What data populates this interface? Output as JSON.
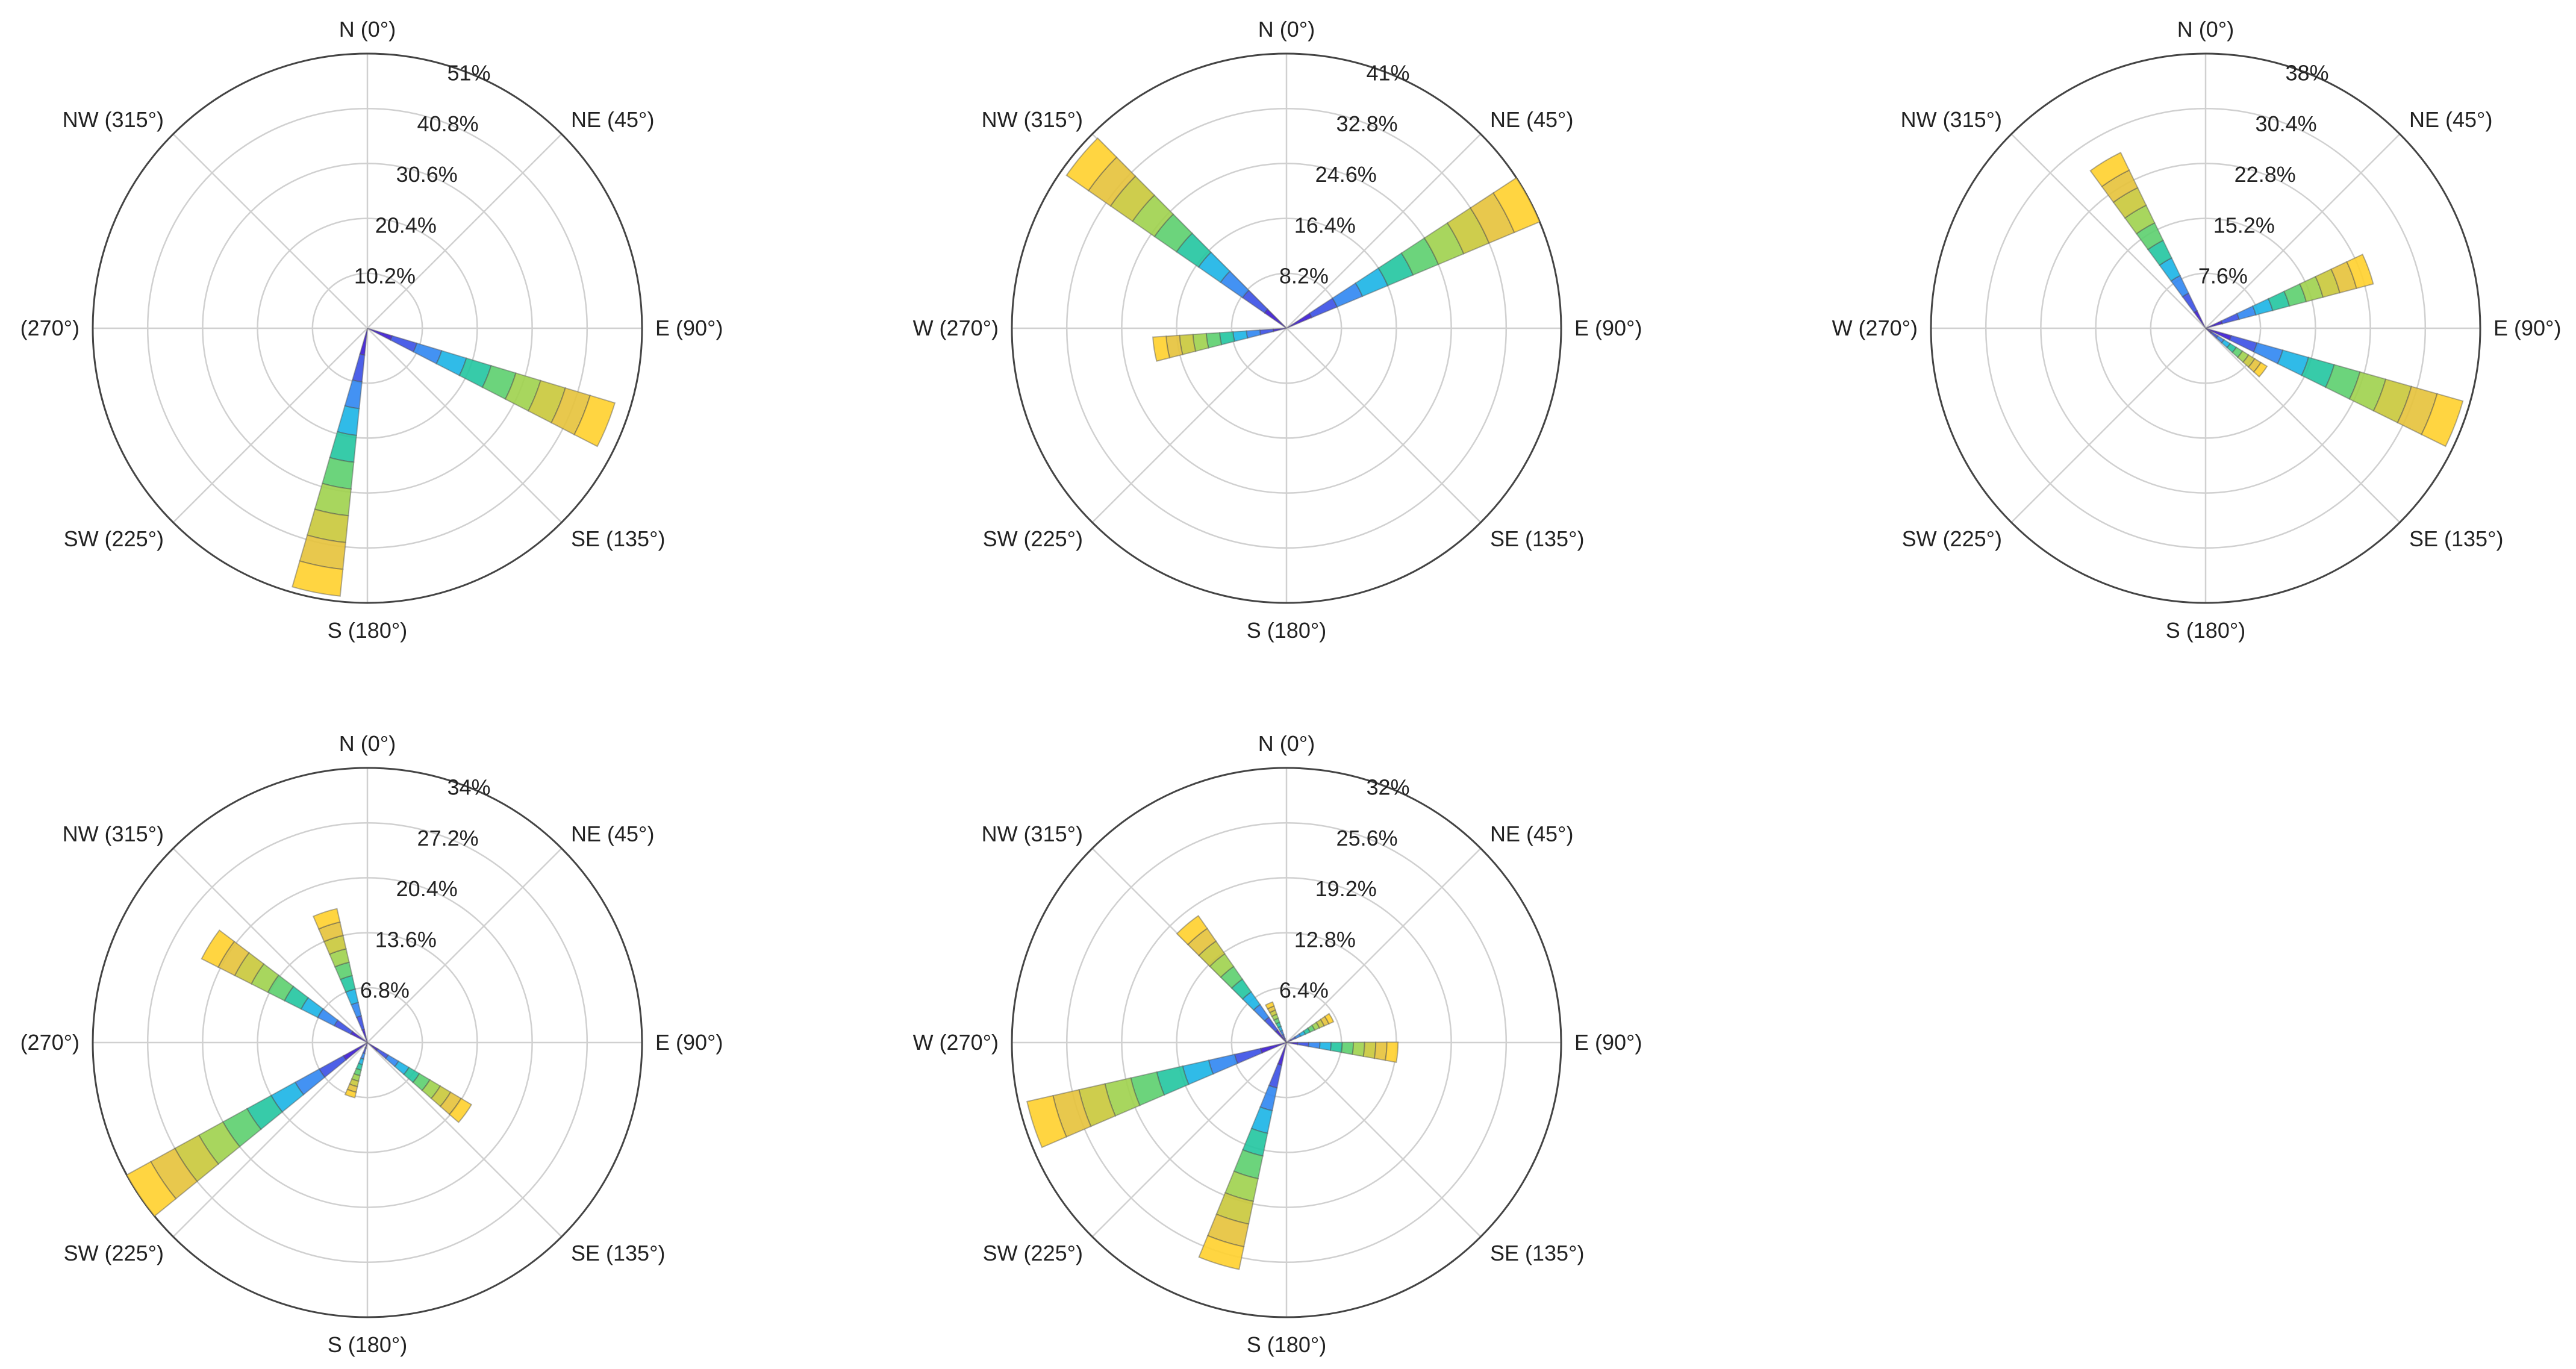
{
  "palette": [
    "#3b18d6",
    "#3a4fe6",
    "#2f86f2",
    "#19b4e6",
    "#21c5a0",
    "#5ccf6e",
    "#9fd14c",
    "#c9c83a",
    "#e6c23a",
    "#ffd02c"
  ],
  "edge_color": "#555555",
  "chart_data": [
    {
      "type": "windrose",
      "title": "",
      "direction_labels": [
        "N (0°)",
        "NE (45°)",
        "E (90°)",
        "SE (135°)",
        "S (180°)",
        "SW (225°)",
        "(270°)",
        "NW (315°)"
      ],
      "rmax": 51,
      "ring_labels": [
        "10.2%",
        "20.4%",
        "30.6%",
        "40.8%",
        "51%"
      ],
      "bars": [
        {
          "direction": 112,
          "value": 48
        },
        {
          "direction": 191,
          "value": 50
        }
      ]
    },
    {
      "type": "windrose",
      "title": "",
      "direction_labels": [
        "N (0°)",
        "NE (45°)",
        "E (90°)",
        "SE (135°)",
        "S (180°)",
        "SW (225°)",
        "W (270°)",
        "NW (315°)"
      ],
      "rmax": 41,
      "ring_labels": [
        "8.2%",
        "16.4%",
        "24.6%",
        "32.8%",
        "41%"
      ],
      "bars": [
        {
          "direction": 62,
          "value": 41
        },
        {
          "direction": 310,
          "value": 40
        },
        {
          "direction": 261,
          "value": 20
        }
      ]
    },
    {
      "type": "windrose",
      "title": "",
      "direction_labels": [
        "N (0°)",
        "NE (45°)",
        "E (90°)",
        "SE (135°)",
        "S (180°)",
        "SW (225°)",
        "W (270°)",
        "NW (315°)"
      ],
      "rmax": 38,
      "ring_labels": [
        "7.6%",
        "15.2%",
        "22.8%",
        "30.4%",
        "38%"
      ],
      "bars": [
        {
          "direction": 111,
          "value": 37
        },
        {
          "direction": 329,
          "value": 27
        },
        {
          "direction": 70,
          "value": 24
        },
        {
          "direction": 127,
          "value": 10
        }
      ]
    },
    {
      "type": "windrose",
      "title": "",
      "direction_labels": [
        "N (0°)",
        "NE (45°)",
        "E (90°)",
        "SE (135°)",
        "S (180°)",
        "SW (225°)",
        "(270°)",
        "NW (315°)"
      ],
      "rmax": 34,
      "ring_labels": [
        "6.8%",
        "13.6%",
        "20.4%",
        "27.2%",
        "34%"
      ],
      "bars": [
        {
          "direction": 236,
          "value": 34
        },
        {
          "direction": 302,
          "value": 23
        },
        {
          "direction": 342,
          "value": 17
        },
        {
          "direction": 126,
          "value": 15
        },
        {
          "direction": 198,
          "value": 7
        }
      ]
    },
    {
      "type": "windrose",
      "title": "",
      "direction_labels": [
        "N (0°)",
        "NE (45°)",
        "E (90°)",
        "SE (135°)",
        "S (180°)",
        "SW (225°)",
        "W (270°)",
        "NW (315°)"
      ],
      "rmax": 32,
      "ring_labels": [
        "6.4%",
        "12.8%",
        "19.2%",
        "25.6%",
        "32%"
      ],
      "bars": [
        {
          "direction": 252,
          "value": 31
        },
        {
          "direction": 197,
          "value": 27
        },
        {
          "direction": 320,
          "value": 18
        },
        {
          "direction": 95,
          "value": 13
        },
        {
          "direction": 61,
          "value": 6
        },
        {
          "direction": 336,
          "value": 5
        }
      ]
    }
  ]
}
